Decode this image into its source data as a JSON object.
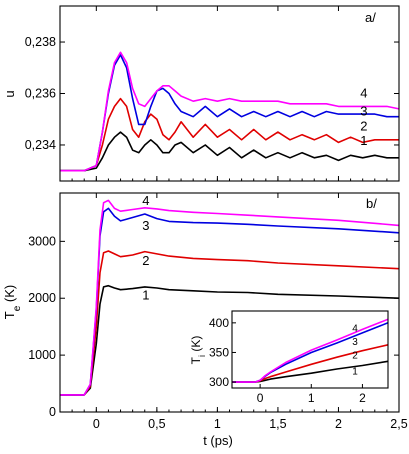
{
  "figure": {
    "xlabel": "t (ps)",
    "xticks": [
      "0",
      "0,5",
      "1",
      "1,5",
      "2",
      "2,5"
    ]
  },
  "chart_data": [
    {
      "type": "line",
      "panel": "a/",
      "ylabel": "u",
      "xlim": [
        -0.3,
        2.5
      ],
      "ylim": [
        0.2326,
        0.2394
      ],
      "xticks": [
        0,
        0.5,
        1,
        1.5,
        2,
        2.5
      ],
      "yticks": [
        0.234,
        0.236,
        0.238
      ],
      "ytick_labels": [
        "0,234",
        "0,236",
        "0,238"
      ],
      "colors": {
        "1": "#000000",
        "2": "#e00000",
        "3": "#0000e0",
        "4": "#ff00ff"
      },
      "series": [
        {
          "name": "1",
          "x": [
            -0.3,
            -0.1,
            0.0,
            0.05,
            0.1,
            0.15,
            0.2,
            0.25,
            0.3,
            0.35,
            0.4,
            0.45,
            0.5,
            0.55,
            0.6,
            0.65,
            0.7,
            0.8,
            0.9,
            1.0,
            1.1,
            1.2,
            1.3,
            1.4,
            1.5,
            1.6,
            1.7,
            1.8,
            1.9,
            2.0,
            2.1,
            2.2,
            2.3,
            2.4,
            2.5
          ],
          "y": [
            0.233,
            0.233,
            0.2331,
            0.2335,
            0.234,
            0.2343,
            0.2345,
            0.2343,
            0.2338,
            0.2337,
            0.234,
            0.2342,
            0.234,
            0.2337,
            0.2337,
            0.234,
            0.2341,
            0.2337,
            0.234,
            0.2336,
            0.2339,
            0.2335,
            0.2338,
            0.2335,
            0.2337,
            0.2335,
            0.2337,
            0.2335,
            0.2336,
            0.2334,
            0.2336,
            0.2335,
            0.2336,
            0.2335,
            0.2335
          ]
        },
        {
          "name": "2",
          "x": [
            -0.3,
            -0.1,
            0.0,
            0.05,
            0.1,
            0.15,
            0.2,
            0.25,
            0.3,
            0.35,
            0.4,
            0.45,
            0.5,
            0.55,
            0.6,
            0.65,
            0.7,
            0.8,
            0.9,
            1.0,
            1.1,
            1.2,
            1.3,
            1.4,
            1.5,
            1.6,
            1.7,
            1.8,
            1.9,
            2.0,
            2.1,
            2.2,
            2.3,
            2.4,
            2.5
          ],
          "y": [
            0.233,
            0.233,
            0.2332,
            0.234,
            0.235,
            0.2355,
            0.2358,
            0.2355,
            0.2346,
            0.2343,
            0.2349,
            0.2352,
            0.235,
            0.2344,
            0.2342,
            0.2345,
            0.2349,
            0.2343,
            0.2348,
            0.2343,
            0.2346,
            0.2342,
            0.2346,
            0.2342,
            0.2345,
            0.2342,
            0.2344,
            0.2342,
            0.2344,
            0.2341,
            0.2343,
            0.2341,
            0.2342,
            0.2342,
            0.2342
          ]
        },
        {
          "name": "3",
          "x": [
            -0.3,
            -0.1,
            0.0,
            0.05,
            0.1,
            0.15,
            0.2,
            0.25,
            0.3,
            0.35,
            0.4,
            0.45,
            0.5,
            0.55,
            0.6,
            0.65,
            0.7,
            0.8,
            0.9,
            1.0,
            1.1,
            1.2,
            1.3,
            1.4,
            1.5,
            1.6,
            1.7,
            1.8,
            1.9,
            2.0,
            2.1,
            2.2,
            2.3,
            2.4,
            2.5
          ],
          "y": [
            0.233,
            0.233,
            0.2332,
            0.2345,
            0.236,
            0.2371,
            0.2375,
            0.237,
            0.2358,
            0.2348,
            0.2348,
            0.2355,
            0.2361,
            0.2362,
            0.236,
            0.2356,
            0.2353,
            0.2351,
            0.2355,
            0.2351,
            0.2354,
            0.2351,
            0.2353,
            0.2351,
            0.2353,
            0.2351,
            0.2353,
            0.2351,
            0.2353,
            0.2352,
            0.2352,
            0.2352,
            0.2352,
            0.2351,
            0.2351
          ]
        },
        {
          "name": "4",
          "x": [
            -0.3,
            -0.1,
            0.0,
            0.05,
            0.1,
            0.15,
            0.2,
            0.25,
            0.3,
            0.35,
            0.4,
            0.45,
            0.5,
            0.55,
            0.6,
            0.65,
            0.7,
            0.8,
            0.9,
            1.0,
            1.1,
            1.2,
            1.3,
            1.4,
            1.5,
            1.6,
            1.7,
            1.8,
            1.9,
            2.0,
            2.1,
            2.2,
            2.3,
            2.4,
            2.5
          ],
          "y": [
            0.233,
            0.233,
            0.2332,
            0.2345,
            0.2361,
            0.2372,
            0.2376,
            0.2372,
            0.2362,
            0.2356,
            0.2355,
            0.2358,
            0.2361,
            0.2363,
            0.2363,
            0.2361,
            0.2359,
            0.2357,
            0.2358,
            0.2357,
            0.2358,
            0.2357,
            0.2357,
            0.2357,
            0.2357,
            0.2356,
            0.2356,
            0.2356,
            0.2356,
            0.2355,
            0.2355,
            0.2355,
            0.2355,
            0.2355,
            0.2354
          ]
        }
      ],
      "labels": [
        {
          "text": "1",
          "x": 2.18,
          "y": 0.234
        },
        {
          "text": "2",
          "x": 2.18,
          "y": 0.23457
        },
        {
          "text": "3",
          "x": 2.18,
          "y": 0.23515
        },
        {
          "text": "4",
          "x": 2.18,
          "y": 0.23584
        }
      ]
    },
    {
      "type": "line",
      "panel": "b/",
      "ylabel": "Te (K)",
      "xlim": [
        -0.3,
        2.5
      ],
      "ylim": [
        0,
        3850
      ],
      "xticks": [
        0,
        0.5,
        1,
        1.5,
        2,
        2.5
      ],
      "yticks": [
        0,
        1000,
        2000,
        3000
      ],
      "ytick_labels": [
        "0",
        "1000",
        "2000",
        "3000"
      ],
      "colors": {
        "1": "#000000",
        "2": "#e00000",
        "3": "#0000e0",
        "4": "#ff00ff"
      },
      "series": [
        {
          "name": "1",
          "x": [
            -0.3,
            -0.1,
            -0.05,
            0.0,
            0.03,
            0.06,
            0.1,
            0.15,
            0.2,
            0.3,
            0.4,
            0.5,
            0.6,
            0.8,
            1.0,
            1.25,
            1.5,
            2.0,
            2.5
          ],
          "y": [
            300,
            300,
            420,
            1200,
            1900,
            2200,
            2220,
            2180,
            2150,
            2170,
            2200,
            2180,
            2150,
            2130,
            2110,
            2100,
            2070,
            2040,
            2000
          ]
        },
        {
          "name": "2",
          "x": [
            -0.3,
            -0.1,
            -0.05,
            0.0,
            0.03,
            0.06,
            0.1,
            0.15,
            0.2,
            0.3,
            0.4,
            0.5,
            0.6,
            0.8,
            1.0,
            1.25,
            1.5,
            2.0,
            2.5
          ],
          "y": [
            300,
            300,
            450,
            1500,
            2450,
            2800,
            2830,
            2780,
            2730,
            2760,
            2820,
            2780,
            2740,
            2700,
            2680,
            2660,
            2620,
            2570,
            2520
          ]
        },
        {
          "name": "3",
          "x": [
            -0.3,
            -0.1,
            -0.05,
            0.0,
            0.03,
            0.06,
            0.1,
            0.15,
            0.2,
            0.3,
            0.4,
            0.5,
            0.6,
            0.8,
            1.0,
            1.25,
            1.5,
            2.0,
            2.5
          ],
          "y": [
            300,
            300,
            480,
            1800,
            3100,
            3520,
            3580,
            3440,
            3360,
            3420,
            3480,
            3400,
            3350,
            3330,
            3320,
            3300,
            3270,
            3220,
            3150
          ]
        },
        {
          "name": "4",
          "x": [
            -0.3,
            -0.1,
            -0.05,
            0.0,
            0.03,
            0.06,
            0.1,
            0.15,
            0.2,
            0.3,
            0.4,
            0.5,
            0.6,
            0.8,
            1.0,
            1.25,
            1.5,
            2.0,
            2.5
          ],
          "y": [
            300,
            300,
            490,
            1850,
            3200,
            3680,
            3720,
            3580,
            3530,
            3560,
            3590,
            3570,
            3540,
            3510,
            3490,
            3460,
            3430,
            3370,
            3280
          ]
        }
      ],
      "labels": [
        {
          "text": "1",
          "x": 0.38,
          "y": 1980
        },
        {
          "text": "2",
          "x": 0.38,
          "y": 2580
        },
        {
          "text": "3",
          "x": 0.38,
          "y": 3200
        },
        {
          "text": "4",
          "x": 0.38,
          "y": 3640
        }
      ],
      "inset": {
        "type": "line",
        "ylabel": "Ti (K)",
        "xlim": [
          -0.55,
          2.5
        ],
        "ylim": [
          290,
          420
        ],
        "xticks": [
          0,
          1,
          2
        ],
        "xtick_labels": [
          "0",
          "1",
          "2"
        ],
        "yticks": [
          300,
          350,
          400
        ],
        "ytick_labels": [
          "300",
          "350",
          "400"
        ],
        "series": [
          {
            "name": "1",
            "x": [
              -0.55,
              -0.1,
              0.0,
              0.1,
              0.2,
              0.5,
              1.0,
              1.5,
              2.0,
              2.5
            ],
            "y": [
              300,
              300,
              301,
              303,
              305,
              309,
              315,
              322,
              328,
              335
            ]
          },
          {
            "name": "2",
            "x": [
              -0.55,
              -0.1,
              0.0,
              0.1,
              0.2,
              0.5,
              1.0,
              1.5,
              2.0,
              2.5
            ],
            "y": [
              300,
              300,
              302,
              306,
              309,
              317,
              330,
              342,
              353,
              363
            ]
          },
          {
            "name": "3",
            "x": [
              -0.55,
              -0.1,
              0.0,
              0.1,
              0.2,
              0.5,
              1.0,
              1.5,
              2.0,
              2.5
            ],
            "y": [
              300,
              300,
              303,
              310,
              316,
              330,
              350,
              366,
              383,
              400
            ]
          },
          {
            "name": "4",
            "x": [
              -0.55,
              -0.1,
              0.0,
              0.1,
              0.2,
              0.5,
              1.0,
              1.5,
              2.0,
              2.5
            ],
            "y": [
              300,
              300,
              303,
              311,
              317,
              333,
              354,
              371,
              389,
              406
            ]
          }
        ],
        "labels": [
          {
            "text": "1",
            "x": 1.8,
            "y": 313
          },
          {
            "text": "2",
            "x": 1.8,
            "y": 340
          },
          {
            "text": "3",
            "x": 1.8,
            "y": 363
          },
          {
            "text": "4",
            "x": 1.8,
            "y": 385
          }
        ]
      }
    }
  ]
}
